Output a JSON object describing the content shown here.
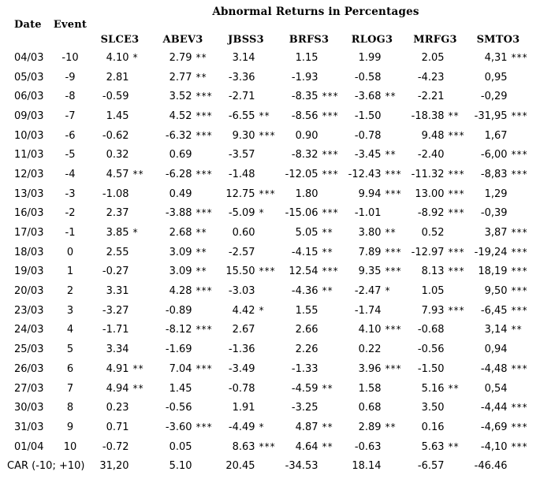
{
  "chart_data": {
    "type": "table",
    "title": "Abnormal Returns in Percentages",
    "columns": [
      "Date",
      "Event",
      "SLCE3",
      "ABEV3",
      "JBSS3",
      "BRFS3",
      "RLOG3",
      "MRFG3",
      "SMTO3"
    ],
    "rows": [
      {
        "date": "04/03",
        "event": "-10",
        "returns": [
          {
            "value": "4.10",
            "sig": "*"
          },
          {
            "value": "2.79",
            "sig": "**"
          },
          {
            "value": "3.14",
            "sig": ""
          },
          {
            "value": "1.15",
            "sig": ""
          },
          {
            "value": "1.99",
            "sig": ""
          },
          {
            "value": "2.05",
            "sig": ""
          },
          {
            "value": "4,31",
            "sig": "***"
          }
        ]
      },
      {
        "date": "05/03",
        "event": "-9",
        "returns": [
          {
            "value": "2.81",
            "sig": ""
          },
          {
            "value": "2.77",
            "sig": "**"
          },
          {
            "value": "-3.36",
            "sig": ""
          },
          {
            "value": "-1.93",
            "sig": ""
          },
          {
            "value": "-0.58",
            "sig": ""
          },
          {
            "value": "-4.23",
            "sig": ""
          },
          {
            "value": "0,95",
            "sig": ""
          }
        ]
      },
      {
        "date": "06/03",
        "event": "-8",
        "returns": [
          {
            "value": "-0.59",
            "sig": ""
          },
          {
            "value": "3.52",
            "sig": "***"
          },
          {
            "value": "-2.71",
            "sig": ""
          },
          {
            "value": "-8.35",
            "sig": "***"
          },
          {
            "value": "-3.68",
            "sig": "**"
          },
          {
            "value": "-2.21",
            "sig": ""
          },
          {
            "value": "-0,29",
            "sig": ""
          }
        ]
      },
      {
        "date": "09/03",
        "event": "-7",
        "returns": [
          {
            "value": "1.45",
            "sig": ""
          },
          {
            "value": "4.52",
            "sig": "***"
          },
          {
            "value": "-6.55",
            "sig": "**"
          },
          {
            "value": "-8.56",
            "sig": "***"
          },
          {
            "value": "-1.50",
            "sig": ""
          },
          {
            "value": "-18.38",
            "sig": "**"
          },
          {
            "value": "-31,95",
            "sig": "***"
          }
        ]
      },
      {
        "date": "10/03",
        "event": "-6",
        "returns": [
          {
            "value": "-0.62",
            "sig": ""
          },
          {
            "value": "-6.32",
            "sig": "***"
          },
          {
            "value": "9.30",
            "sig": "***"
          },
          {
            "value": "0.90",
            "sig": ""
          },
          {
            "value": "-0.78",
            "sig": ""
          },
          {
            "value": "9.48",
            "sig": "***"
          },
          {
            "value": "1,67",
            "sig": ""
          }
        ]
      },
      {
        "date": "11/03",
        "event": "-5",
        "returns": [
          {
            "value": "0.32",
            "sig": ""
          },
          {
            "value": "0.69",
            "sig": ""
          },
          {
            "value": "-3.57",
            "sig": ""
          },
          {
            "value": "-8.32",
            "sig": "***"
          },
          {
            "value": "-3.45",
            "sig": "**"
          },
          {
            "value": "-2.40",
            "sig": ""
          },
          {
            "value": "-6,00",
            "sig": "***"
          }
        ]
      },
      {
        "date": "12/03",
        "event": "-4",
        "returns": [
          {
            "value": "4.57",
            "sig": "**"
          },
          {
            "value": "-6.28",
            "sig": "***"
          },
          {
            "value": "-1.48",
            "sig": ""
          },
          {
            "value": "-12.05",
            "sig": "***"
          },
          {
            "value": "-12.43",
            "sig": "***"
          },
          {
            "value": "-11.32",
            "sig": "***"
          },
          {
            "value": "-8,83",
            "sig": "***"
          }
        ]
      },
      {
        "date": "13/03",
        "event": "-3",
        "returns": [
          {
            "value": "-1.08",
            "sig": ""
          },
          {
            "value": "0.49",
            "sig": ""
          },
          {
            "value": "12.75",
            "sig": "***"
          },
          {
            "value": "1.80",
            "sig": ""
          },
          {
            "value": "9.94",
            "sig": "***"
          },
          {
            "value": "13.00",
            "sig": "***"
          },
          {
            "value": "1,29",
            "sig": ""
          }
        ]
      },
      {
        "date": "16/03",
        "event": "-2",
        "returns": [
          {
            "value": "2.37",
            "sig": ""
          },
          {
            "value": "-3.88",
            "sig": "***"
          },
          {
            "value": "-5.09",
            "sig": "*"
          },
          {
            "value": "-15.06",
            "sig": "***"
          },
          {
            "value": "-1.01",
            "sig": ""
          },
          {
            "value": "-8.92",
            "sig": "***"
          },
          {
            "value": "-0,39",
            "sig": ""
          }
        ]
      },
      {
        "date": "17/03",
        "event": "-1",
        "returns": [
          {
            "value": "3.85",
            "sig": "*"
          },
          {
            "value": "2.68",
            "sig": "**"
          },
          {
            "value": "0.60",
            "sig": ""
          },
          {
            "value": "5.05",
            "sig": "**"
          },
          {
            "value": "3.80",
            "sig": "**"
          },
          {
            "value": "0.52",
            "sig": ""
          },
          {
            "value": "3,87",
            "sig": "***"
          }
        ]
      },
      {
        "date": "18/03",
        "event": "0",
        "returns": [
          {
            "value": "2.55",
            "sig": ""
          },
          {
            "value": "3.09",
            "sig": "**"
          },
          {
            "value": "-2.57",
            "sig": ""
          },
          {
            "value": "-4.15",
            "sig": "**"
          },
          {
            "value": "7.89",
            "sig": "***"
          },
          {
            "value": "-12.97",
            "sig": "***"
          },
          {
            "value": "-19,24",
            "sig": "***"
          }
        ]
      },
      {
        "date": "19/03",
        "event": "1",
        "returns": [
          {
            "value": "-0.27",
            "sig": ""
          },
          {
            "value": "3.09",
            "sig": "**"
          },
          {
            "value": "15.50",
            "sig": "***"
          },
          {
            "value": "12.54",
            "sig": "***"
          },
          {
            "value": "9.35",
            "sig": "***"
          },
          {
            "value": "8.13",
            "sig": "***"
          },
          {
            "value": "18,19",
            "sig": "***"
          }
        ]
      },
      {
        "date": "20/03",
        "event": "2",
        "returns": [
          {
            "value": "3.31",
            "sig": ""
          },
          {
            "value": "4.28",
            "sig": "***"
          },
          {
            "value": "-3.03",
            "sig": ""
          },
          {
            "value": "-4.36",
            "sig": "**"
          },
          {
            "value": "-2.47",
            "sig": "*"
          },
          {
            "value": "1.05",
            "sig": ""
          },
          {
            "value": "9,50",
            "sig": "***"
          }
        ]
      },
      {
        "date": "23/03",
        "event": "3",
        "returns": [
          {
            "value": "-3.27",
            "sig": ""
          },
          {
            "value": "-0.89",
            "sig": ""
          },
          {
            "value": "4.42",
            "sig": "*"
          },
          {
            "value": "1.55",
            "sig": ""
          },
          {
            "value": "-1.74",
            "sig": ""
          },
          {
            "value": "7.93",
            "sig": "***"
          },
          {
            "value": "-6,45",
            "sig": "***"
          }
        ]
      },
      {
        "date": "24/03",
        "event": "4",
        "returns": [
          {
            "value": "-1.71",
            "sig": ""
          },
          {
            "value": "-8.12",
            "sig": "***"
          },
          {
            "value": "2.67",
            "sig": ""
          },
          {
            "value": "2.66",
            "sig": ""
          },
          {
            "value": "4.10",
            "sig": "***"
          },
          {
            "value": "-0.68",
            "sig": ""
          },
          {
            "value": "3,14",
            "sig": "**"
          }
        ]
      },
      {
        "date": "25/03",
        "event": "5",
        "returns": [
          {
            "value": "3.34",
            "sig": ""
          },
          {
            "value": "-1.69",
            "sig": ""
          },
          {
            "value": "-1.36",
            "sig": ""
          },
          {
            "value": "2.26",
            "sig": ""
          },
          {
            "value": "0.22",
            "sig": ""
          },
          {
            "value": "-0.56",
            "sig": ""
          },
          {
            "value": "0,94",
            "sig": ""
          }
        ]
      },
      {
        "date": "26/03",
        "event": "6",
        "returns": [
          {
            "value": "4.91",
            "sig": "**"
          },
          {
            "value": "7.04",
            "sig": "***"
          },
          {
            "value": "-3.49",
            "sig": ""
          },
          {
            "value": "-1.33",
            "sig": ""
          },
          {
            "value": "3.96",
            "sig": "***"
          },
          {
            "value": "-1.50",
            "sig": ""
          },
          {
            "value": "-4,48",
            "sig": "***"
          }
        ]
      },
      {
        "date": "27/03",
        "event": "7",
        "returns": [
          {
            "value": "4.94",
            "sig": "**"
          },
          {
            "value": "1.45",
            "sig": ""
          },
          {
            "value": "-0.78",
            "sig": ""
          },
          {
            "value": "-4.59",
            "sig": "**"
          },
          {
            "value": "1.58",
            "sig": ""
          },
          {
            "value": "5.16",
            "sig": "**"
          },
          {
            "value": "0,54",
            "sig": ""
          }
        ]
      },
      {
        "date": "30/03",
        "event": "8",
        "returns": [
          {
            "value": "0.23",
            "sig": ""
          },
          {
            "value": "-0.56",
            "sig": ""
          },
          {
            "value": "1.91",
            "sig": ""
          },
          {
            "value": "-3.25",
            "sig": ""
          },
          {
            "value": "0.68",
            "sig": ""
          },
          {
            "value": "3.50",
            "sig": ""
          },
          {
            "value": "-4,44",
            "sig": "***"
          }
        ]
      },
      {
        "date": "31/03",
        "event": "9",
        "returns": [
          {
            "value": "0.71",
            "sig": ""
          },
          {
            "value": "-3.60",
            "sig": "***"
          },
          {
            "value": "-4.49",
            "sig": "*"
          },
          {
            "value": "4.87",
            "sig": "**"
          },
          {
            "value": "2.89",
            "sig": "**"
          },
          {
            "value": "0.16",
            "sig": ""
          },
          {
            "value": "-4,69",
            "sig": "***"
          }
        ]
      },
      {
        "date": "01/04",
        "event": "10",
        "returns": [
          {
            "value": "-0.72",
            "sig": ""
          },
          {
            "value": "0.05",
            "sig": ""
          },
          {
            "value": "8.63",
            "sig": "***"
          },
          {
            "value": "4.64",
            "sig": "**"
          },
          {
            "value": "-0.63",
            "sig": ""
          },
          {
            "value": "5.63",
            "sig": "**"
          },
          {
            "value": "-4,10",
            "sig": "***"
          }
        ]
      }
    ],
    "footer": {
      "label": "CAR (-10; +10)",
      "returns": [
        {
          "value": "31,20",
          "sig": ""
        },
        {
          "value": "5.10",
          "sig": ""
        },
        {
          "value": "20.45",
          "sig": ""
        },
        {
          "value": "-34.53",
          "sig": ""
        },
        {
          "value": "18.14",
          "sig": ""
        },
        {
          "value": "-6.57",
          "sig": ""
        },
        {
          "value": "-46.46",
          "sig": ""
        }
      ]
    }
  }
}
